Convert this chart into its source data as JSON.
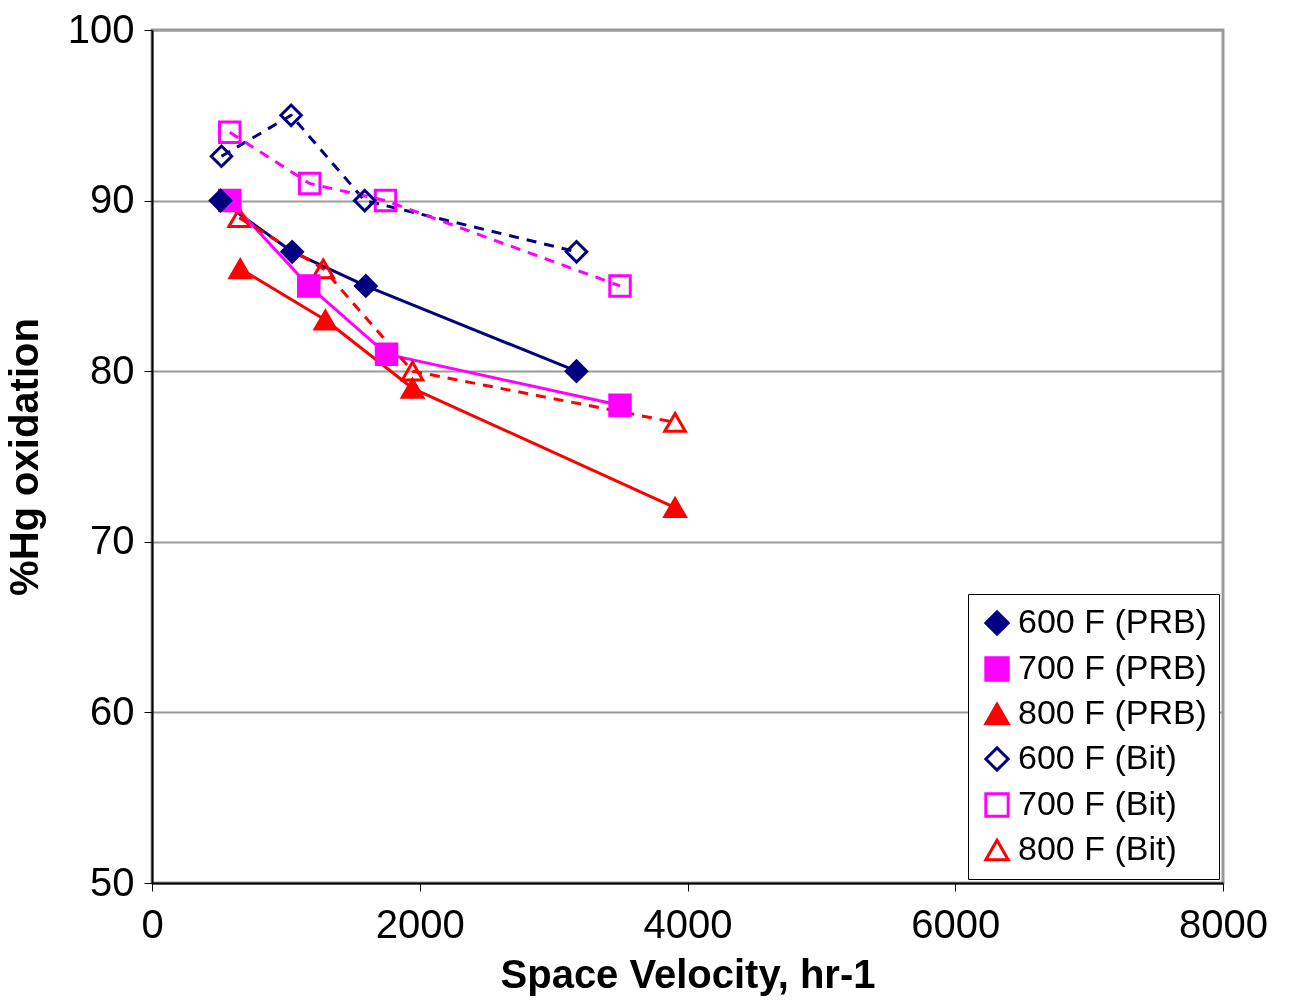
{
  "chart_data": {
    "type": "line",
    "xlabel": "Space Velocity, hr-1",
    "ylabel": "%Hg oxidation",
    "xlim": [
      0,
      8000
    ],
    "xticks": [
      0,
      2000,
      4000,
      6000,
      8000
    ],
    "ylim": [
      50,
      100
    ],
    "yticks": [
      50,
      60,
      70,
      80,
      90,
      100
    ],
    "grid": "y",
    "legend": "bottom right",
    "series": [
      {
        "name": "600 F (PRB)",
        "color": "#000080",
        "marker": "diamond",
        "line_style": "solid",
        "x": [
          512,
          1047,
          1597,
          3171
        ],
        "values": [
          90,
          87,
          85,
          80
        ]
      },
      {
        "name": "700 F (PRB)",
        "color": "#ff00ff",
        "marker": "square",
        "line_style": "solid",
        "x": [
          581,
          1171,
          1752,
          3496
        ],
        "values": [
          90,
          85,
          81,
          78
        ]
      },
      {
        "name": "800 F (PRB)",
        "color": "#ff0000",
        "marker": "triangle",
        "line_style": "solid",
        "x": [
          659,
          1295,
          1946,
          3907
        ],
        "values": [
          86,
          83,
          79,
          72
        ]
      },
      {
        "name": "600 F (Bit)",
        "color": "#000080",
        "marker": "diamond",
        "line_style": "dashed",
        "x": [
          519,
          1039,
          1589,
          3171
        ],
        "values": [
          92.6,
          95,
          90,
          87
        ]
      },
      {
        "name": "700 F (Bit)",
        "color": "#ff00ff",
        "marker": "square",
        "line_style": "dashed",
        "x": [
          581,
          1178,
          1744,
          3496
        ],
        "values": [
          94,
          91,
          90,
          85
        ]
      },
      {
        "name": "800 F (Bit)",
        "color": "#ff0000",
        "marker": "triangle",
        "line_style": "dashed",
        "x": [
          651,
          1279,
          1946,
          3907
        ],
        "values": [
          89,
          86,
          80,
          77
        ]
      }
    ]
  }
}
